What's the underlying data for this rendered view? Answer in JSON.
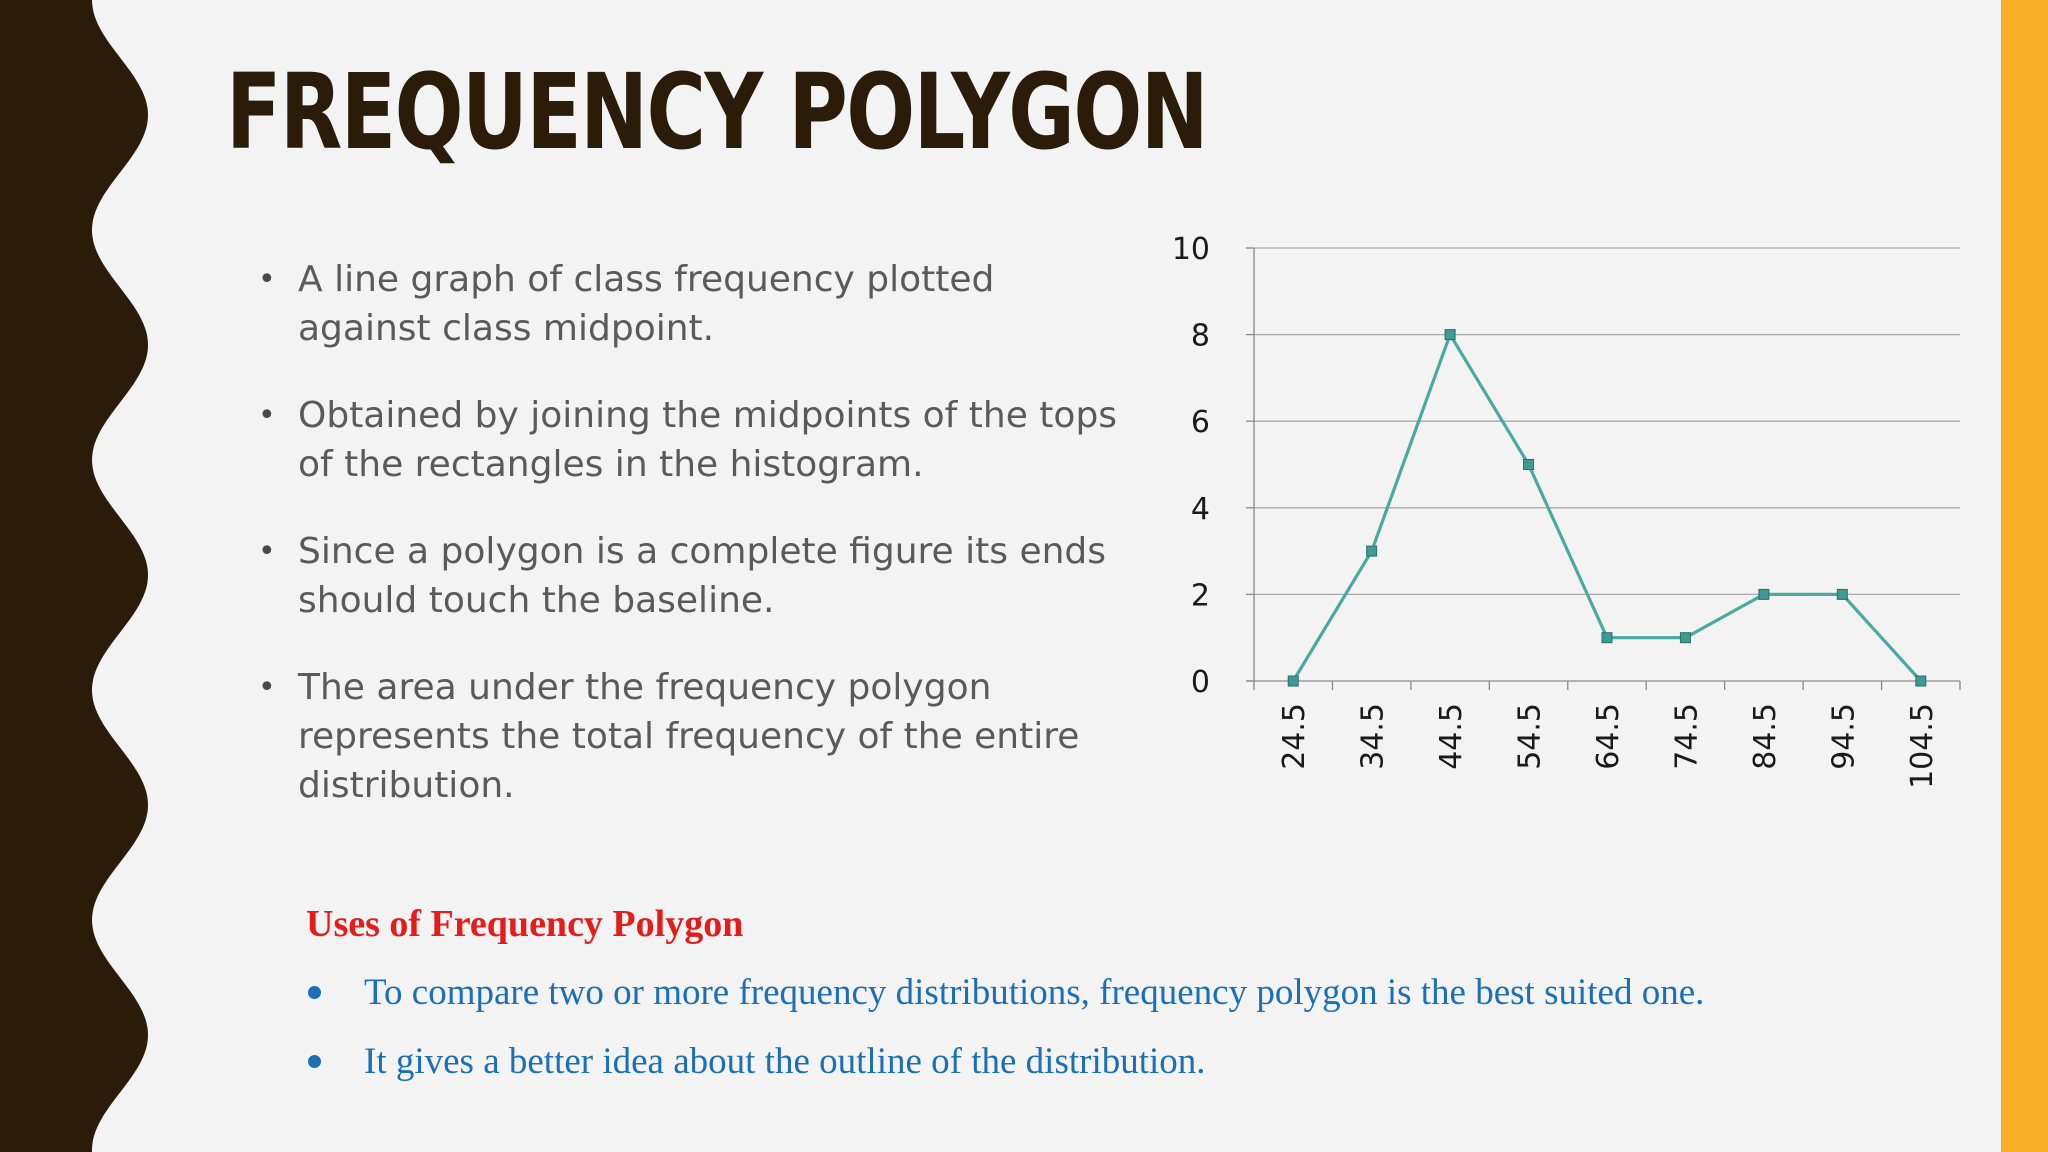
{
  "slide": {
    "title": "FREQUENCY POLYGON",
    "accent_color": "#f6b02a",
    "border_color": "#2a1c08",
    "bullets": [
      "A line graph of class frequency plotted against class midpoint.",
      "Obtained by joining the midpoints of the tops of the rectangles in the histogram.",
      "Since a polygon is a complete figure its ends should touch the baseline.",
      "The area under the frequency polygon represents the total frequency of the entire distribution."
    ],
    "uses": {
      "heading": "Uses of Frequency Polygon",
      "items": [
        "To compare two or more frequency distributions, frequency polygon is the best suited one.",
        "It gives a better idea about the outline of the distribution."
      ],
      "heading_color": "#e51c1c",
      "text_color": "#1b6fb8"
    }
  },
  "chart_data": {
    "type": "line",
    "categories": [
      "24.5",
      "34.5",
      "44.5",
      "54.5",
      "64.5",
      "74.5",
      "84.5",
      "94.5",
      "104.5"
    ],
    "series": [
      {
        "values": [
          0,
          3,
          8,
          5,
          1,
          1,
          2,
          2,
          0
        ],
        "color": "#4aa9a0"
      }
    ],
    "ylim": [
      0,
      10
    ],
    "yticks": [
      0,
      2,
      4,
      6,
      8,
      10
    ],
    "grid": true,
    "legend": "none",
    "xlabel": "",
    "ylabel": ""
  }
}
